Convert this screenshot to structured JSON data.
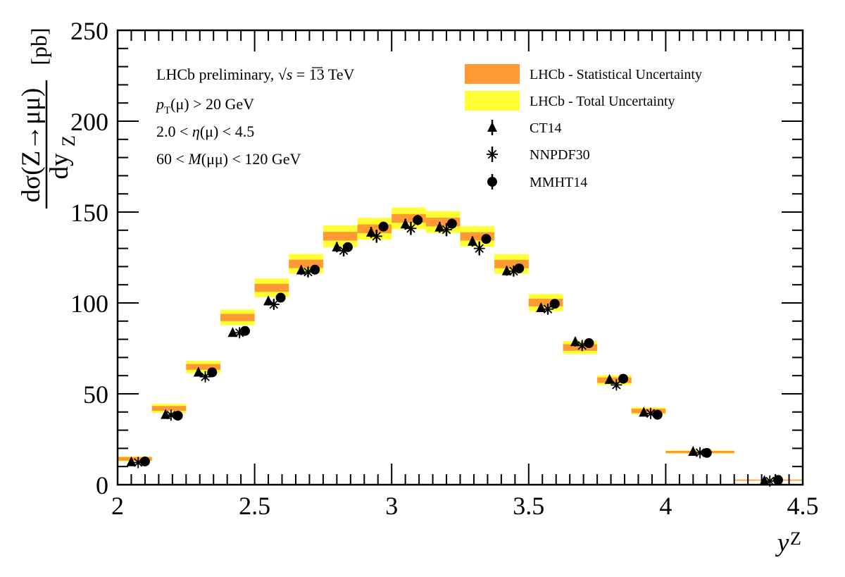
{
  "chart_data": {
    "type": "bar",
    "title": "",
    "xlabel": "y_Z",
    "ylabel": "dσ(Z→μμ)/dy_Z [pb]",
    "xlim": [
      2,
      4.5
    ],
    "ylim": [
      0,
      250
    ],
    "x_ticks": [
      "2",
      "2.5",
      "3",
      "3.5",
      "4",
      "4.5"
    ],
    "y_ticks": [
      "0",
      "50",
      "100",
      "150",
      "200",
      "250"
    ],
    "grid": false,
    "legend_position": "top-right",
    "annotations": {
      "line1_prefix": "LHCb preliminary, ",
      "line1_sqrt": "√s",
      "line1_suffix": " = 13 TeV",
      "line2_p": "p",
      "line2_sub": "T",
      "line2_rest": "(μ) > 20 GeV",
      "line3_pre": "2.0 < ",
      "line3_eta": "η",
      "line3_post": "(μ) < 4.5",
      "line4_pre": "60 < ",
      "line4_m": "M",
      "line4_post": "(μμ) < 120 GeV"
    },
    "axis_text": {
      "ylabel_numerator": "dσ(Z→μμ)",
      "ylabel_denominator": "dy",
      "ylabel_denominator_sub": "Z",
      "ylabel_unit": "[pb]",
      "xlabel_main": "y",
      "xlabel_sub": "Z"
    },
    "legend": [
      {
        "name": "LHCb - Statistical Uncertainty",
        "marker": "orange-band",
        "color": "#ff9933"
      },
      {
        "name": "LHCb - Total Uncertainty",
        "marker": "yellow-band",
        "color": "#ffff33"
      },
      {
        "name": "CT14",
        "marker": "triangle",
        "color": "#000000"
      },
      {
        "name": "NNPDF30",
        "marker": "asterisk",
        "color": "#000000"
      },
      {
        "name": "MMHT14",
        "marker": "circle",
        "color": "#000000"
      }
    ],
    "bins": [
      {
        "lo": 2.0,
        "hi": 2.125,
        "value": 14.2,
        "stat": 1.0,
        "total": 1.4
      },
      {
        "lo": 2.125,
        "hi": 2.25,
        "value": 42.0,
        "stat": 1.3,
        "total": 2.5
      },
      {
        "lo": 2.25,
        "hi": 2.375,
        "value": 64.8,
        "stat": 1.6,
        "total": 3.4
      },
      {
        "lo": 2.375,
        "hi": 2.5,
        "value": 92.0,
        "stat": 2.0,
        "total": 4.3
      },
      {
        "lo": 2.5,
        "hi": 2.625,
        "value": 108.3,
        "stat": 2.2,
        "total": 5.2
      },
      {
        "lo": 2.625,
        "hi": 2.75,
        "value": 121.5,
        "stat": 2.3,
        "total": 5.4
      },
      {
        "lo": 2.75,
        "hi": 2.875,
        "value": 136.7,
        "stat": 2.4,
        "total": 6.0
      },
      {
        "lo": 2.875,
        "hi": 3.0,
        "value": 140.8,
        "stat": 2.4,
        "total": 6.0
      },
      {
        "lo": 3.0,
        "hi": 3.125,
        "value": 146.5,
        "stat": 2.4,
        "total": 6.0
      },
      {
        "lo": 3.125,
        "hi": 3.25,
        "value": 144.5,
        "stat": 2.4,
        "total": 6.0
      },
      {
        "lo": 3.25,
        "hi": 3.375,
        "value": 136.6,
        "stat": 2.3,
        "total": 5.6
      },
      {
        "lo": 3.375,
        "hi": 3.5,
        "value": 121.4,
        "stat": 2.3,
        "total": 5.4
      },
      {
        "lo": 3.5,
        "hi": 3.625,
        "value": 100.2,
        "stat": 2.1,
        "total": 4.7
      },
      {
        "lo": 3.625,
        "hi": 3.75,
        "value": 75.5,
        "stat": 1.8,
        "total": 3.6
      },
      {
        "lo": 3.75,
        "hi": 3.875,
        "value": 57.5,
        "stat": 1.5,
        "total": 2.7
      },
      {
        "lo": 3.875,
        "hi": 4.0,
        "value": 40.6,
        "stat": 1.2,
        "total": 1.9
      },
      {
        "lo": 4.0,
        "hi": 4.25,
        "value": 18.0,
        "stat": 0.6,
        "total": 0.9
      },
      {
        "lo": 4.25,
        "hi": 4.5,
        "value": 2.6,
        "stat": 0.2,
        "total": 0.3
      }
    ],
    "series": [
      {
        "name": "CT14",
        "marker": "triangle",
        "x": [
          2.05,
          2.175,
          2.295,
          2.42,
          2.55,
          2.67,
          2.8,
          2.925,
          3.05,
          3.175,
          3.295,
          3.42,
          3.545,
          3.67,
          3.795,
          3.92,
          4.1,
          4.36
        ],
        "y": [
          12.5,
          38.5,
          61.8,
          83.6,
          101.0,
          118.0,
          130.7,
          138.8,
          143.3,
          141.6,
          133.8,
          117.6,
          97.3,
          78.6,
          57.8,
          39.8,
          18.2,
          2.2
        ],
        "err": [
          0.8,
          1.2,
          1.6,
          2.0,
          2.4,
          2.6,
          2.8,
          3.0,
          3.0,
          3.0,
          2.8,
          2.6,
          2.2,
          2.6,
          1.4,
          1.0,
          0.6,
          0.2
        ]
      },
      {
        "name": "NNPDF30",
        "marker": "asterisk",
        "x": [
          2.075,
          2.195,
          2.32,
          2.445,
          2.57,
          2.695,
          2.825,
          2.945,
          3.07,
          3.2,
          3.32,
          3.445,
          3.57,
          3.695,
          3.82,
          3.945,
          4.125,
          4.38
        ],
        "y": [
          12.2,
          38.3,
          59.4,
          83.6,
          99.2,
          117.0,
          128.8,
          136.7,
          141.0,
          140.3,
          130.0,
          117.5,
          96.6,
          76.6,
          54.9,
          39.2,
          17.6,
          2.0
        ],
        "err": [
          0.8,
          1.2,
          1.6,
          2.0,
          2.6,
          2.6,
          3.2,
          3.6,
          3.6,
          3.6,
          3.8,
          2.6,
          2.6,
          1.8,
          1.6,
          1.0,
          0.5,
          0.2
        ]
      },
      {
        "name": "MMHT14",
        "marker": "circle",
        "x": [
          2.1,
          2.22,
          2.345,
          2.465,
          2.595,
          2.72,
          2.84,
          2.97,
          3.095,
          3.22,
          3.345,
          3.465,
          3.595,
          3.72,
          3.845,
          3.97,
          4.15,
          4.41
        ],
        "y": [
          12.8,
          38.0,
          61.8,
          84.6,
          102.9,
          118.3,
          130.7,
          142.0,
          145.6,
          143.6,
          135.2,
          119.0,
          99.5,
          77.9,
          58.3,
          38.5,
          17.5,
          2.6
        ],
        "err": [
          0.8,
          1.2,
          1.4,
          1.8,
          2.0,
          2.2,
          2.4,
          2.6,
          2.8,
          2.8,
          2.6,
          2.2,
          2.0,
          1.8,
          1.4,
          1.0,
          0.5,
          0.2
        ]
      }
    ]
  }
}
